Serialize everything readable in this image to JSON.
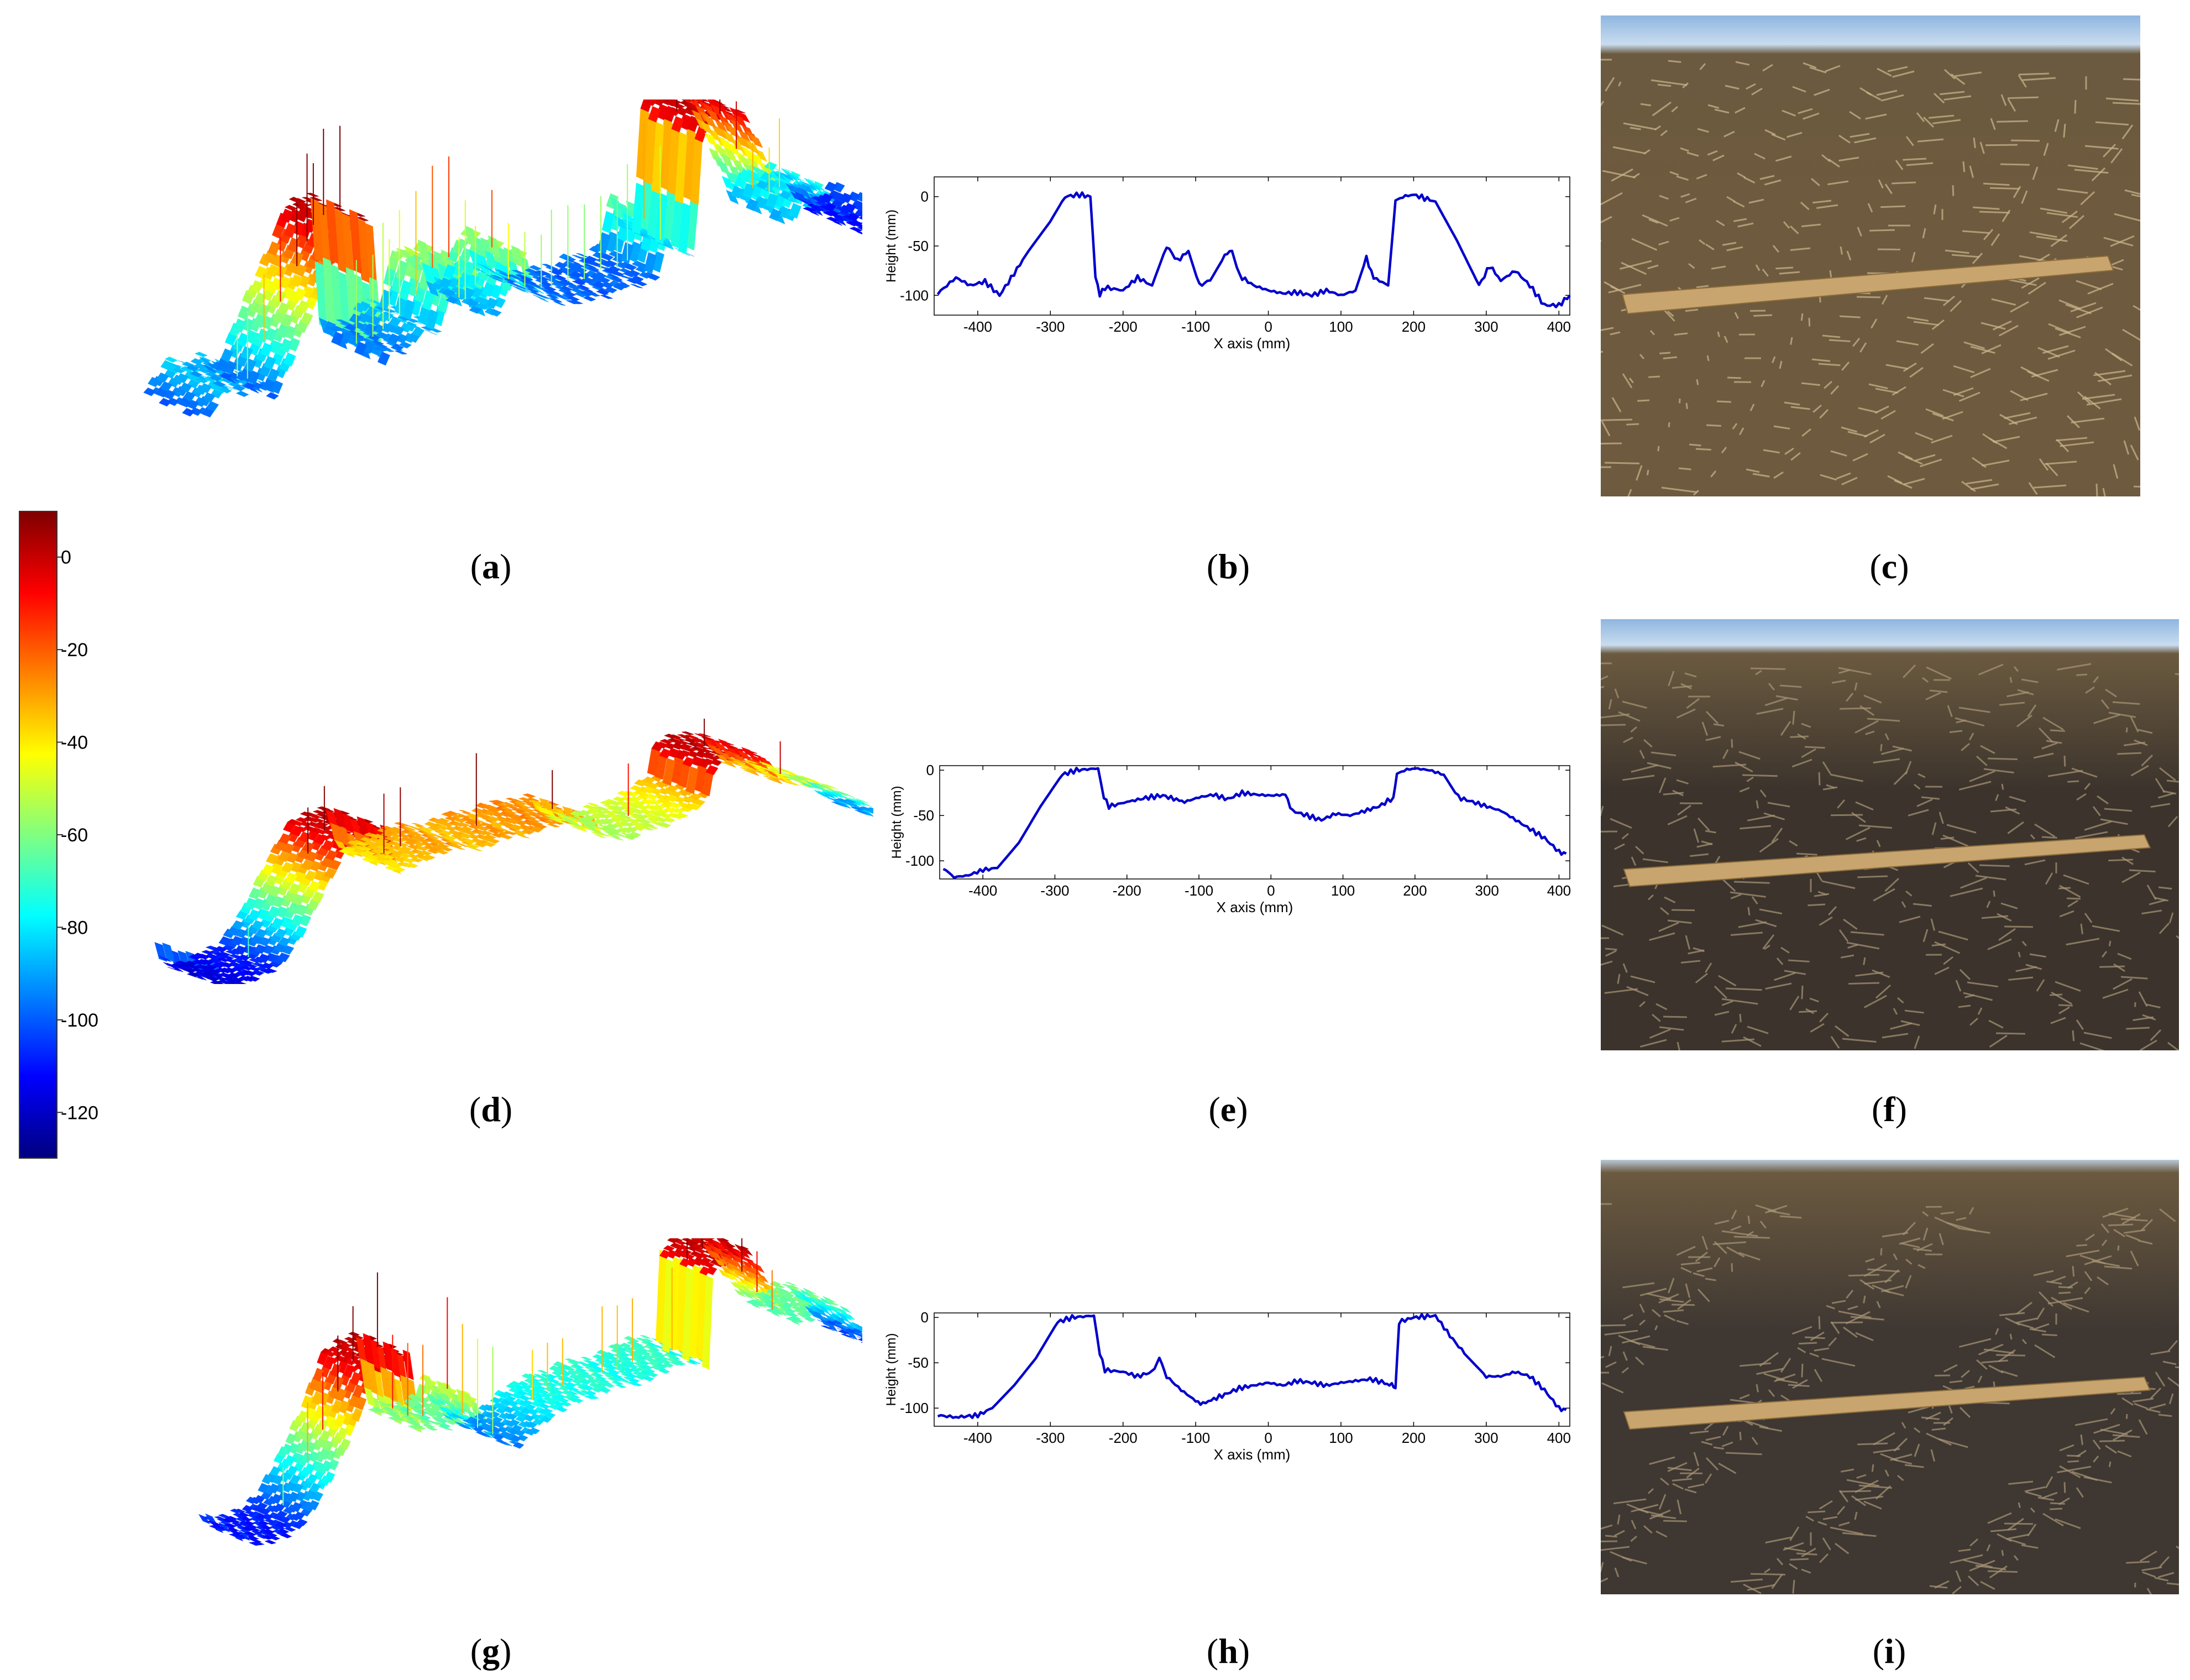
{
  "figure": {
    "panel_labels": [
      "a",
      "b",
      "c",
      "d",
      "e",
      "f",
      "g",
      "h",
      "i"
    ],
    "colorbar": {
      "ticks": [
        0,
        -20,
        -40,
        -60,
        -80,
        -100,
        -120
      ],
      "range": [
        -130,
        10
      ],
      "colormap": [
        "#7f0000",
        "#ff0000",
        "#ff8000",
        "#ffff00",
        "#80ff80",
        "#00ffff",
        "#0080ff",
        "#0000ff",
        "#00007f"
      ]
    }
  },
  "chart_data": [
    {
      "type": "line",
      "panel": "b",
      "xlabel": "X axis (mm)",
      "ylabel": "Height (mm)",
      "xlim": [
        -460,
        415
      ],
      "ylim": [
        -120,
        20
      ],
      "xticks": [
        -400,
        -300,
        -200,
        -100,
        0,
        100,
        200,
        300,
        400
      ],
      "yticks": [
        0,
        -50,
        -100
      ],
      "color": "#0000cc",
      "x": [
        -455,
        -430,
        -410,
        -390,
        -370,
        -350,
        -330,
        -300,
        -280,
        -260,
        -245,
        -238,
        -232,
        -225,
        -200,
        -180,
        -160,
        -140,
        -125,
        -110,
        -95,
        -80,
        -60,
        -50,
        -40,
        -20,
        0,
        20,
        40,
        60,
        80,
        100,
        120,
        135,
        145,
        165,
        175,
        185,
        200,
        230,
        260,
        290,
        305,
        320,
        340,
        360,
        380,
        400,
        415
      ],
      "y": [
        -98,
        -82,
        -90,
        -86,
        -100,
        -78,
        -55,
        -25,
        0,
        2,
        0,
        -80,
        -100,
        -92,
        -95,
        -82,
        -90,
        -50,
        -65,
        -55,
        -90,
        -85,
        -60,
        -55,
        -80,
        -90,
        -95,
        -98,
        -97,
        -100,
        -95,
        -100,
        -95,
        -62,
        -82,
        -90,
        -5,
        0,
        2,
        -5,
        -45,
        -90,
        -70,
        -85,
        -75,
        -90,
        -110,
        -110,
        -100
      ]
    },
    {
      "type": "line",
      "panel": "e",
      "xlabel": "X axis (mm)",
      "ylabel": "Height (mm)",
      "xlim": [
        -460,
        415
      ],
      "ylim": [
        -120,
        5
      ],
      "xticks": [
        -400,
        -300,
        -200,
        -100,
        0,
        100,
        200,
        300,
        400
      ],
      "yticks": [
        0,
        -50,
        -100
      ],
      "color": "#0000cc",
      "x": [
        -455,
        -440,
        -420,
        -400,
        -380,
        -350,
        -320,
        -290,
        -270,
        -240,
        -232,
        -225,
        -200,
        -170,
        -150,
        -120,
        -100,
        -80,
        -60,
        -40,
        -20,
        0,
        20,
        30,
        50,
        70,
        90,
        110,
        130,
        150,
        170,
        175,
        185,
        200,
        220,
        240,
        260,
        280,
        300,
        320,
        340,
        360,
        380,
        400,
        410
      ],
      "y": [
        -108,
        -118,
        -116,
        -110,
        -108,
        -80,
        -40,
        -5,
        0,
        2,
        -30,
        -40,
        -35,
        -30,
        -28,
        -35,
        -30,
        -27,
        -32,
        -25,
        -27,
        -28,
        -27,
        -45,
        -50,
        -55,
        -48,
        -50,
        -45,
        -40,
        -30,
        -5,
        0,
        2,
        0,
        -5,
        -30,
        -35,
        -40,
        -45,
        -55,
        -65,
        -75,
        -90,
        -92
      ]
    },
    {
      "type": "line",
      "panel": "h",
      "xlabel": "X axis (mm)",
      "ylabel": "Height (mm)",
      "xlim": [
        -460,
        415
      ],
      "ylim": [
        -120,
        5
      ],
      "xticks": [
        -400,
        -300,
        -200,
        -100,
        0,
        100,
        200,
        300,
        400
      ],
      "yticks": [
        0,
        -50,
        -100
      ],
      "color": "#0000cc",
      "x": [
        -455,
        -430,
        -400,
        -380,
        -350,
        -320,
        -290,
        -270,
        -240,
        -232,
        -225,
        -200,
        -180,
        -160,
        -150,
        -140,
        -120,
        -100,
        -90,
        -60,
        -40,
        -20,
        0,
        20,
        40,
        60,
        80,
        100,
        120,
        140,
        160,
        170,
        175,
        180,
        200,
        230,
        250,
        270,
        300,
        320,
        340,
        360,
        380,
        400,
        410
      ],
      "y": [
        -108,
        -110,
        -108,
        -100,
        -75,
        -45,
        -5,
        0,
        2,
        -40,
        -58,
        -60,
        -65,
        -60,
        -45,
        -65,
        -80,
        -92,
        -95,
        -85,
        -78,
        -75,
        -72,
        -75,
        -70,
        -72,
        -75,
        -72,
        -70,
        -68,
        -72,
        -75,
        -78,
        -5,
        0,
        2,
        -20,
        -40,
        -65,
        -65,
        -60,
        -65,
        -80,
        -100,
        -102
      ]
    }
  ]
}
